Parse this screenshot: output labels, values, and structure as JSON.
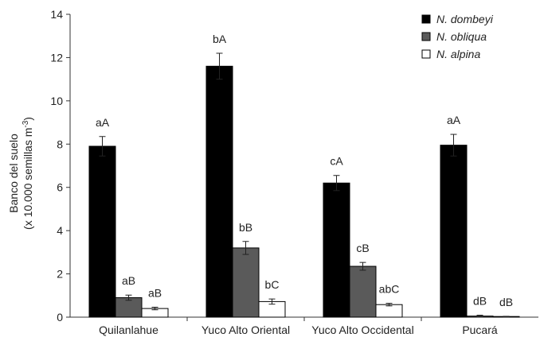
{
  "chart_data": {
    "type": "bar",
    "title": "",
    "xlabel": "",
    "ylabel_line1": "Banco del suelo",
    "ylabel_line2_prefix": "(x 10.000 semillas m",
    "ylabel_line2_sup": "-3",
    "ylabel_line2_suffix": ")",
    "ylim": [
      0,
      14
    ],
    "yticks": [
      0,
      2,
      4,
      6,
      8,
      10,
      12,
      14
    ],
    "categories": [
      "Quilanlahue",
      "Yuco Alto Oriental",
      "Yuco Alto Occidental",
      "Pucará"
    ],
    "legend_position": "top-right",
    "series": [
      {
        "name": "N. dombeyi",
        "color": "#000000",
        "values": [
          7.9,
          11.6,
          6.2,
          7.95
        ],
        "errors": [
          0.45,
          0.6,
          0.35,
          0.5
        ],
        "labels": [
          "aA",
          "bA",
          "cA",
          "aA"
        ]
      },
      {
        "name": "N. obliqua",
        "color": "#5a5a5a",
        "values": [
          0.9,
          3.2,
          2.35,
          0.05
        ],
        "errors": [
          0.12,
          0.3,
          0.18,
          0.04
        ],
        "labels": [
          "aB",
          "bB",
          "cB",
          "dB"
        ]
      },
      {
        "name": "N. alpina",
        "color": "#ffffff",
        "values": [
          0.4,
          0.72,
          0.58,
          0.03
        ],
        "errors": [
          0.06,
          0.12,
          0.06,
          0.01
        ],
        "labels": [
          "aB",
          "bC",
          "abC",
          "dB"
        ]
      }
    ]
  }
}
